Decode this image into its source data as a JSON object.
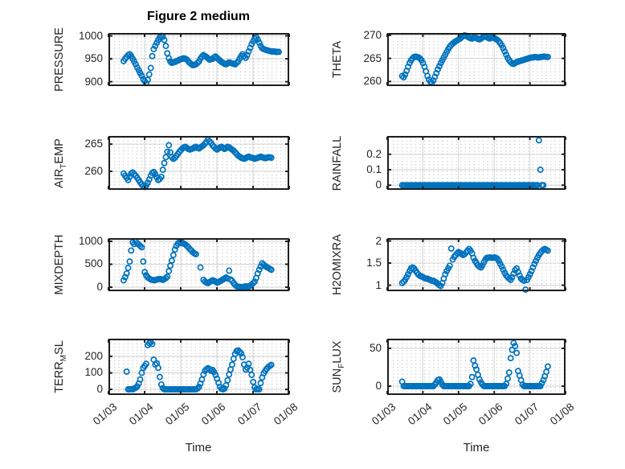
{
  "title": "Figure 2 medium",
  "x_axis": {
    "label": "Time",
    "tick_labels": [
      "01/03",
      "01/04",
      "01/05",
      "01/06",
      "01/07",
      "01/08"
    ],
    "tick_values": [
      0,
      1,
      2,
      3,
      4,
      5
    ],
    "xlim": [
      0,
      5
    ]
  },
  "style": {
    "marker_color": "#0072BD",
    "axis_color": "#1f1f1f",
    "major_grid_color": "#d2d2d2",
    "minor_grid_dot_color": "#bfbfbf",
    "text_color": "#262626",
    "title_color": "#000000"
  },
  "chart_data": [
    {
      "id": "pressure",
      "type": "scatter",
      "ylabel": "PRESSURE",
      "ylabel_parts": [
        {
          "t": "PRESSURE"
        }
      ],
      "ytick_labels": [
        "900",
        "950",
        "1000"
      ],
      "ytick_values": [
        900,
        950,
        1000
      ],
      "ylim": [
        890.5,
        1006.3
      ],
      "grid": "major+minor",
      "legend": "none",
      "x_start_days": 0.42,
      "x_step_days": 0.0416667,
      "values": [
        945,
        950,
        954,
        958,
        960,
        956,
        950,
        944,
        938,
        931,
        925,
        919,
        913,
        906,
        901,
        897,
        904,
        916,
        930,
        956,
        971,
        978,
        985,
        991,
        997,
        1000,
        998,
        991,
        978,
        962,
        951,
        944,
        941,
        942,
        943,
        945,
        946,
        948,
        949,
        950,
        951,
        950,
        948,
        944,
        941,
        938,
        936,
        937,
        938,
        941,
        944,
        950,
        955,
        958,
        956,
        954,
        951,
        948,
        949,
        950,
        953,
        955,
        952,
        949,
        946,
        943,
        941,
        939,
        938,
        940,
        942,
        941,
        940,
        939,
        938,
        941,
        944,
        950,
        956,
        960,
        956,
        952,
        958,
        966,
        974,
        982,
        988,
        994,
        997,
        992,
        985,
        978,
        973,
        971,
        970,
        969,
        968,
        967,
        966,
        966,
        966,
        965,
        965,
        965
      ]
    },
    {
      "id": "theta",
      "type": "scatter",
      "ylabel": "THETA",
      "ylabel_parts": [
        {
          "t": "THETA"
        }
      ],
      "ytick_labels": [
        "260",
        "265",
        "270"
      ],
      "ytick_values": [
        260,
        265,
        270
      ],
      "ylim": [
        259.0,
        270.5
      ],
      "grid": "major+minor",
      "legend": "none",
      "x_start_days": 0.42,
      "x_step_days": 0.0416667,
      "values": [
        261.2,
        260.9,
        261.5,
        262.3,
        263.2,
        264.0,
        264.6,
        265.0,
        265.3,
        265.4,
        265.3,
        265.2,
        265.0,
        264.6,
        264.0,
        263.2,
        262.2,
        261.2,
        260.4,
        259.9,
        259.7,
        260.2,
        261.0,
        261.8,
        262.6,
        263.3,
        264.0,
        264.6,
        265.2,
        265.8,
        266.4,
        267.0,
        267.5,
        267.9,
        268.2,
        268.5,
        268.7,
        268.9,
        269.1,
        269.3,
        269.6,
        269.8,
        270.0,
        269.9,
        269.7,
        269.5,
        269.4,
        269.3,
        269.5,
        269.6,
        269.4,
        269.2,
        269.1,
        269.3,
        269.5,
        269.7,
        269.8,
        269.6,
        269.4,
        269.3,
        269.5,
        269.6,
        269.4,
        269.2,
        269.0,
        268.7,
        268.3,
        267.8,
        267.2,
        266.5,
        265.8,
        265.1,
        264.6,
        264.2,
        263.9,
        263.8,
        264.0,
        264.2,
        264.3,
        264.4,
        264.5,
        264.6,
        264.7,
        264.8,
        264.9,
        265.0,
        265.1,
        265.2,
        265.2,
        265.3,
        265.3,
        265.2,
        265.2,
        265.3,
        265.3,
        265.4,
        265.4,
        265.3,
        265.3
      ]
    },
    {
      "id": "airtemp",
      "type": "scatter",
      "ylabel": "AIR_TEMP",
      "ylabel_parts": [
        {
          "t": "AIR"
        },
        {
          "t": "T",
          "sub": true
        },
        {
          "t": "EMP"
        }
      ],
      "ytick_labels": [
        "260",
        "265"
      ],
      "ytick_values": [
        260,
        265
      ],
      "ylim": [
        256.6,
        266.5
      ],
      "grid": "major+minor",
      "legend": "none",
      "x_start_days": 0.42,
      "x_step_days": 0.0416667,
      "values": [
        259.6,
        259.2,
        258.8,
        258.4,
        259.0,
        259.6,
        259.8,
        259.5,
        259.2,
        258.8,
        258.4,
        258.0,
        257.6,
        257.3,
        257.1,
        257.4,
        257.9,
        258.5,
        259.2,
        259.7,
        259.9,
        259.5,
        258.9,
        258.4,
        258.6,
        259.0,
        260.3,
        261.5,
        262.6,
        263.6,
        264.8,
        263.5,
        262.6,
        262.3,
        262.5,
        262.8,
        263.2,
        263.6,
        263.9,
        264.2,
        264.4,
        264.5,
        264.3,
        264.1,
        264.0,
        264.1,
        264.2,
        264.4,
        264.5,
        264.3,
        264.2,
        264.4,
        264.6,
        264.8,
        265.1,
        265.4,
        265.8,
        265.5,
        265.2,
        264.8,
        264.5,
        264.2,
        264.0,
        264.2,
        264.4,
        264.5,
        264.3,
        264.1,
        264.3,
        264.5,
        264.4,
        264.2,
        264.0,
        263.8,
        263.5,
        263.2,
        262.9,
        262.7,
        262.5,
        262.4,
        262.3,
        262.4,
        262.6,
        262.7,
        262.6,
        262.5,
        262.4,
        262.3,
        262.4,
        262.5,
        262.6,
        262.7,
        262.6,
        262.5,
        262.4,
        262.5,
        262.6,
        262.6,
        262.5
      ]
    },
    {
      "id": "rainfall",
      "type": "scatter",
      "ylabel": "RAINFALL",
      "ylabel_parts": [
        {
          "t": "RAINFALL"
        }
      ],
      "ytick_labels": [
        "0",
        "0.1",
        "0.2"
      ],
      "ytick_values": [
        0,
        0.1,
        0.2
      ],
      "ylim": [
        -0.03,
        0.318
      ],
      "grid": "major+minor",
      "legend": "none",
      "x_start_days": 0.42,
      "x_step_days": 0.0416667,
      "values": [
        0,
        0,
        0,
        0,
        0,
        0,
        0,
        0,
        0,
        0,
        0,
        0,
        0,
        0,
        0,
        0,
        0,
        0,
        0,
        0,
        0,
        0,
        0,
        0,
        0,
        0,
        0,
        0,
        0,
        0,
        0,
        0,
        0,
        0,
        0,
        0,
        0,
        0,
        0,
        0,
        0,
        0,
        0,
        0,
        0,
        0,
        0,
        0,
        0,
        0,
        0,
        0,
        0,
        0,
        0,
        0,
        0,
        0,
        0,
        0,
        0,
        0,
        0,
        0,
        0,
        0,
        0,
        0,
        0,
        0,
        0,
        0,
        0,
        0,
        0,
        0,
        0,
        0,
        0,
        0,
        0,
        0,
        0,
        0,
        0,
        0,
        0,
        0,
        0,
        0,
        0,
        0,
        0.29,
        0.1,
        0,
        0,
        null,
        null,
        null
      ]
    },
    {
      "id": "mixdepth",
      "type": "scatter",
      "ylabel": "MIXDEPTH",
      "ylabel_parts": [
        {
          "t": "MIXDEPTH"
        }
      ],
      "ytick_labels": [
        "0",
        "500",
        "1000"
      ],
      "ytick_values": [
        0,
        500,
        1000
      ],
      "ylim": [
        -88,
        1070
      ],
      "grid": "major+minor",
      "legend": "none",
      "x_start_days": 0.42,
      "x_step_days": 0.0416667,
      "values": [
        150,
        220,
        300,
        420,
        560,
        800,
        980,
        940,
        1000,
        960,
        930,
        900,
        870,
        560,
        330,
        260,
        215,
        190,
        170,
        160,
        150,
        155,
        165,
        175,
        180,
        170,
        160,
        175,
        200,
        230,
        350,
        470,
        580,
        700,
        820,
        900,
        950,
        980,
        960,
        970,
        950,
        930,
        900,
        870,
        830,
        800,
        760,
        735,
        720,
        null,
        null,
        430,
        null,
        160,
        120,
        100,
        90,
        110,
        130,
        150,
        140,
        120,
        100,
        110,
        130,
        150,
        170,
        190,
        210,
        190,
        360,
        170,
        140,
        90,
        50,
        20,
        10,
        5,
        0,
        5,
        10,
        20,
        15,
        10,
        30,
        60,
        90,
        120,
        200,
        300,
        380,
        450,
        520,
        490,
        460,
        440,
        420,
        400,
        380
      ]
    },
    {
      "id": "h2omixra",
      "type": "scatter",
      "ylabel": "H2OMIXRA",
      "ylabel_parts": [
        {
          "t": "H2OMIXRA"
        }
      ],
      "ytick_labels": [
        "1",
        "1.5",
        "2"
      ],
      "ytick_values": [
        1,
        1.5,
        2
      ],
      "ylim": [
        0.864,
        2.064
      ],
      "grid": "major+minor",
      "legend": "none",
      "x_start_days": 0.42,
      "x_step_days": 0.0416667,
      "values": [
        1.05,
        1.08,
        1.12,
        1.18,
        1.25,
        1.32,
        1.38,
        1.4,
        1.38,
        1.33,
        1.28,
        1.24,
        1.21,
        1.2,
        1.18,
        1.16,
        1.15,
        1.15,
        1.13,
        1.12,
        1.1,
        1.1,
        1.08,
        1.06,
        1.03,
        1.0,
        0.98,
        1.05,
        1.15,
        1.25,
        1.32,
        1.38,
        1.44,
        1.83,
        1.58,
        1.64,
        1.68,
        1.72,
        1.75,
        1.73,
        1.7,
        1.68,
        1.7,
        1.74,
        1.78,
        1.82,
        1.78,
        1.72,
        1.62,
        1.55,
        1.5,
        1.45,
        1.42,
        1.4,
        1.45,
        1.52,
        1.58,
        1.62,
        1.62,
        1.63,
        1.62,
        1.62,
        1.63,
        1.62,
        1.6,
        1.55,
        1.48,
        1.42,
        1.35,
        1.28,
        1.22,
        1.18,
        1.15,
        1.12,
        1.18,
        1.26,
        1.34,
        1.38,
        1.3,
        1.22,
        1.15,
        1.12,
        1.1,
        0.9,
        1.12,
        1.18,
        1.25,
        1.32,
        1.4,
        1.48,
        1.55,
        1.62,
        1.68,
        1.73,
        1.77,
        1.8,
        1.82,
        1.8,
        1.78
      ]
    },
    {
      "id": "terrmsl",
      "type": "scatter",
      "ylabel": "TERR_MSL",
      "ylabel_parts": [
        {
          "t": "TERR"
        },
        {
          "t": "M",
          "sub": true
        },
        {
          "t": "SL"
        }
      ],
      "ytick_labels": [
        "0",
        "100",
        "200"
      ],
      "ytick_values": [
        0,
        100,
        200
      ],
      "ylim": [
        -34,
        307
      ],
      "grid": "major+minor",
      "legend": "none",
      "x_start_days": 0.42,
      "x_step_days": 0.0416667,
      "values": [
        null,
        null,
        108,
        0,
        0,
        2,
        0,
        5,
        10,
        18,
        35,
        60,
        100,
        130,
        142,
        155,
        268,
        280,
        285,
        275,
        180,
        150,
        158,
        130,
        75,
        30,
        8,
        0,
        0,
        0,
        0,
        0,
        0,
        0,
        0,
        0,
        0,
        0,
        0,
        0,
        0,
        0,
        0,
        0,
        0,
        0,
        0,
        0,
        0,
        5,
        15,
        35,
        60,
        90,
        112,
        122,
        128,
        122,
        112,
        118,
        105,
        88,
        65,
        40,
        15,
        3,
        0,
        5,
        25,
        55,
        90,
        120,
        150,
        185,
        215,
        232,
        236,
        228,
        218,
        195,
        150,
        120,
        132,
        155,
        118,
        88,
        45,
        12,
        0,
        3,
        0,
        38,
        72,
        98,
        112,
        125,
        135,
        142,
        148
      ]
    },
    {
      "id": "sunflux",
      "type": "scatter",
      "ylabel": "SUN_FLUX",
      "ylabel_parts": [
        {
          "t": "SUN"
        },
        {
          "t": "F",
          "sub": true
        },
        {
          "t": "LUX"
        }
      ],
      "ytick_labels": [
        "0",
        "50"
      ],
      "ytick_values": [
        0,
        50
      ],
      "ylim": [
        -11.7,
        62.8
      ],
      "grid": "major+minor",
      "legend": "none",
      "x_start_days": 0.42,
      "x_step_days": 0.0416667,
      "values": [
        6,
        0,
        0,
        0,
        0,
        0,
        0,
        0,
        0,
        0,
        0,
        0,
        0,
        0,
        0,
        0,
        0,
        0,
        0,
        0,
        0,
        0,
        2,
        5,
        8,
        9,
        6,
        2,
        0,
        0,
        0,
        0,
        0,
        0,
        0,
        0,
        0,
        0,
        0,
        0,
        0,
        0,
        0,
        0,
        0,
        0,
        3,
        12,
        34,
        27,
        22,
        15,
        9,
        5,
        2,
        0,
        0,
        0,
        0,
        0,
        0,
        0,
        0,
        0,
        0,
        0,
        0,
        0,
        0,
        0,
        3,
        10,
        18,
        37,
        48,
        57,
        53,
        44,
        20,
        14,
        8,
        2,
        0,
        0,
        0,
        0,
        0,
        0,
        0,
        0,
        0,
        0,
        0,
        0,
        4,
        8,
        13,
        19,
        26
      ]
    }
  ]
}
